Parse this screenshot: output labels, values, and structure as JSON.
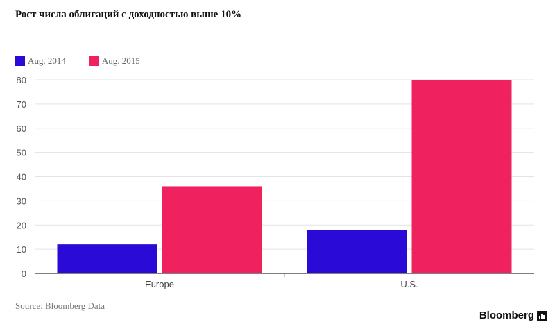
{
  "header": {
    "title": "Рост числа облигаций с доходностью выше 10%"
  },
  "footer": {
    "source": "Source: Bloomberg Data",
    "brand": "Bloomberg",
    "brand_icon": "bar-chart-icon"
  },
  "chart_data": {
    "type": "bar",
    "title": "Рост числа облигаций с доходностью выше 10%",
    "xlabel": "",
    "ylabel": "",
    "categories": [
      "Europe",
      "U.S."
    ],
    "series": [
      {
        "name": "Aug. 2014",
        "color": "#2a0ad6",
        "values": [
          12,
          18
        ]
      },
      {
        "name": "Aug. 2015",
        "color": "#f0215f",
        "values": [
          36,
          80
        ]
      }
    ],
    "ylim": [
      0,
      80
    ],
    "yticks": [
      0,
      10,
      20,
      30,
      40,
      50,
      60,
      70,
      80
    ],
    "grid": true,
    "legend_position": "top-left"
  }
}
